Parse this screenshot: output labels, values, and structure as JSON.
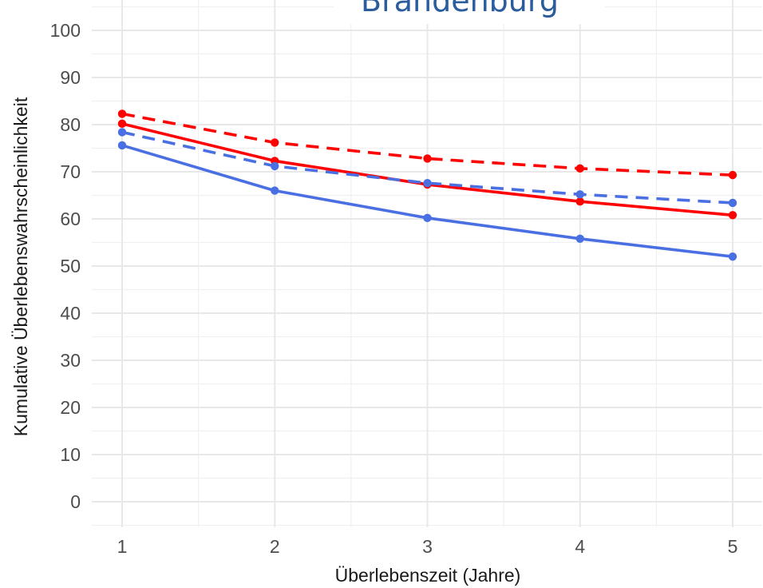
{
  "chart_data": {
    "type": "line",
    "title": "Brandenburg",
    "xlabel": "Überlebenszeit (Jahre)",
    "ylabel": "Kumulative Überlebenswahrscheinlichkeit",
    "x": [
      1,
      2,
      3,
      4,
      5
    ],
    "x_tick_labels": [
      "1",
      "2",
      "3",
      "4",
      "5"
    ],
    "xlim": [
      1,
      5
    ],
    "y_ticks": [
      0,
      10,
      20,
      30,
      40,
      50,
      60,
      70,
      80,
      90,
      100
    ],
    "y_tick_labels": [
      "0",
      "10",
      "20",
      "30",
      "40",
      "50",
      "60",
      "70",
      "80",
      "90",
      "100"
    ],
    "ylim": [
      0,
      100
    ],
    "grid": true,
    "series": [
      {
        "color": "#ff0000",
        "line_style": "dashed",
        "values": [
          82.3,
          76.2,
          72.8,
          70.7,
          69.3
        ]
      },
      {
        "color": "#ff0000",
        "line_style": "solid",
        "values": [
          80.2,
          72.3,
          67.3,
          63.7,
          60.8
        ]
      },
      {
        "color": "#4a6fe3",
        "line_style": "dashed",
        "values": [
          78.4,
          71.2,
          67.6,
          65.2,
          63.4
        ]
      },
      {
        "color": "#4a6fe3",
        "line_style": "solid",
        "values": [
          75.6,
          66.0,
          60.2,
          55.8,
          52.0
        ]
      }
    ]
  }
}
